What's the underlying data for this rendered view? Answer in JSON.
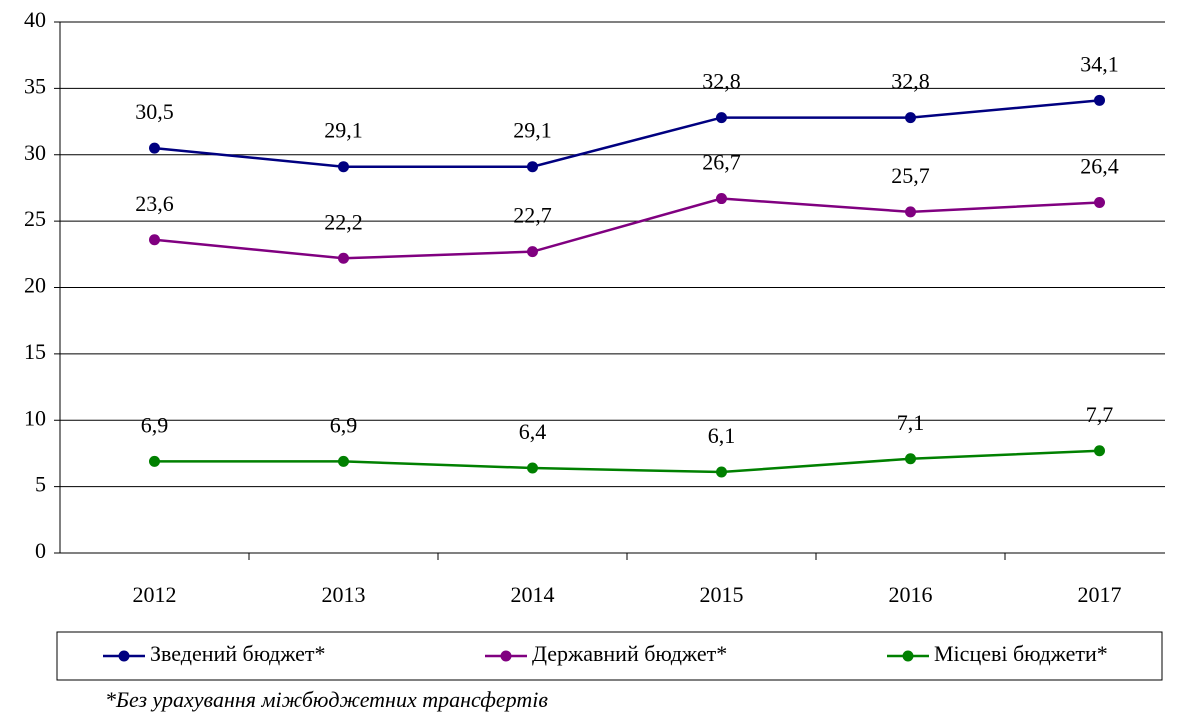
{
  "chart_data": {
    "type": "line",
    "categories": [
      "2012",
      "2013",
      "2014",
      "2015",
      "2016",
      "2017"
    ],
    "series": [
      {
        "name": "Зведений бюджет*",
        "color": "#000080",
        "values": [
          30.5,
          29.1,
          29.1,
          32.8,
          32.8,
          34.1
        ],
        "value_labels": [
          "30,5",
          "29,1",
          "29,1",
          "32,8",
          "32,8",
          "34,1"
        ]
      },
      {
        "name": "Державний бюджет*",
        "color": "#800080",
        "values": [
          23.6,
          22.2,
          22.7,
          26.7,
          25.7,
          26.4
        ],
        "value_labels": [
          "23,6",
          "22,2",
          "22,7",
          "26,7",
          "25,7",
          "26,4"
        ]
      },
      {
        "name": "Місцеві бюджети*",
        "color": "#008000",
        "values": [
          6.9,
          6.9,
          6.4,
          6.1,
          7.1,
          7.7
        ],
        "value_labels": [
          "6,9",
          "6,9",
          "6,4",
          "6,1",
          "7,1",
          "7,7"
        ]
      }
    ],
    "ylim": [
      0,
      40
    ],
    "yticks": [
      0,
      5,
      10,
      15,
      20,
      25,
      30,
      35,
      40
    ],
    "grid": true,
    "legend": "bottom",
    "footnote": "*Без урахування міжбюджетних трансфертів"
  }
}
